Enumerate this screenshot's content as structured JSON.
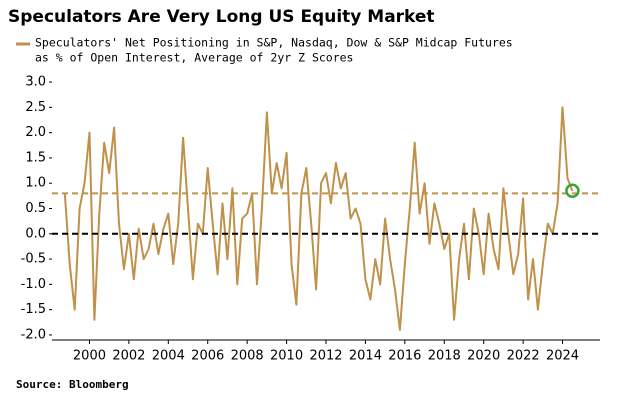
{
  "chart_data": {
    "type": "line",
    "title": "Speculators Are Very Long US Equity Market",
    "subtitle": [
      "Speculators' Net Positioning in S&P, Nasdaq, Dow & S&P Midcap Futures",
      "as % of Open Interest, Average of 2yr Z Scores"
    ],
    "source": "Source: Bloomberg",
    "xlim": [
      1998.1,
      2025.9
    ],
    "xticks": [
      2000,
      2002,
      2004,
      2006,
      2008,
      2010,
      2012,
      2014,
      2016,
      2018,
      2020,
      2022,
      2024
    ],
    "ylim": [
      -2.1,
      3.1
    ],
    "yticks": [
      {
        "value": 3,
        "label": "3.0"
      },
      2.5,
      {
        "value": 2,
        "label": "2.0"
      },
      1.5,
      {
        "value": 1,
        "label": "1.0"
      },
      0.5,
      {
        "value": 0,
        "label": "0.0"
      },
      -0.5,
      {
        "value": -1,
        "label": "-1.0"
      },
      -1.5,
      {
        "value": -2,
        "label": "-2.0"
      }
    ],
    "reference_lines": [
      {
        "value": 0.8,
        "color": "#c0914a"
      },
      {
        "value": 0,
        "color": "#000000"
      }
    ],
    "highlight": {
      "x": 2024.5,
      "value": 0.85,
      "color": "#3aa336"
    },
    "series": [
      {
        "name": "Speculators' Net Positioning in S&P, Nasdaq, Dow & S&P Midcap Futures as % of Open Interest, Average of 2yr Z Scores",
        "color": "#c0914a",
        "x": [
          1998.75,
          1999,
          1999.25,
          1999.5,
          1999.75,
          2000,
          2000.25,
          2000.5,
          2000.75,
          2001,
          2001.25,
          2001.5,
          2001.75,
          2002,
          2002.25,
          2002.5,
          2002.75,
          2003,
          2003.25,
          2003.5,
          2003.75,
          2004,
          2004.25,
          2004.5,
          2004.75,
          2005,
          2005.25,
          2005.5,
          2005.75,
          2006,
          2006.25,
          2006.5,
          2006.75,
          2007,
          2007.25,
          2007.5,
          2007.75,
          2008,
          2008.25,
          2008.5,
          2008.75,
          2009,
          2009.25,
          2009.5,
          2009.75,
          2010,
          2010.25,
          2010.5,
          2010.75,
          2011,
          2011.25,
          2011.5,
          2011.75,
          2012,
          2012.25,
          2012.5,
          2012.75,
          2013,
          2013.25,
          2013.5,
          2013.75,
          2014,
          2014.25,
          2014.5,
          2014.75,
          2015,
          2015.25,
          2015.5,
          2015.75,
          2016,
          2016.25,
          2016.5,
          2016.75,
          2017,
          2017.25,
          2017.5,
          2017.75,
          2018,
          2018.25,
          2018.5,
          2018.75,
          2019,
          2019.25,
          2019.5,
          2019.75,
          2020,
          2020.25,
          2020.5,
          2020.75,
          2021,
          2021.25,
          2021.5,
          2021.75,
          2022,
          2022.25,
          2022.5,
          2022.75,
          2023,
          2023.25,
          2023.5,
          2023.75,
          2024,
          2024.25,
          2024.5
        ],
        "values": [
          0.8,
          -0.6,
          -1.5,
          0.5,
          1.0,
          2.0,
          -1.7,
          0.4,
          1.8,
          1.2,
          2.1,
          0.2,
          -0.7,
          0.0,
          -0.9,
          0.1,
          -0.5,
          -0.3,
          0.2,
          -0.4,
          0.1,
          0.4,
          -0.6,
          0.2,
          1.9,
          0.5,
          -0.9,
          0.2,
          0.0,
          1.3,
          0.2,
          -0.8,
          0.6,
          -0.5,
          0.9,
          -1.0,
          0.3,
          0.4,
          0.8,
          -1.0,
          0.5,
          2.4,
          0.8,
          1.4,
          0.9,
          1.6,
          -0.6,
          -1.4,
          0.8,
          1.3,
          0.2,
          -1.1,
          1.0,
          1.2,
          0.6,
          1.4,
          0.9,
          1.2,
          0.3,
          0.5,
          0.2,
          -0.9,
          -1.3,
          -0.5,
          -1.0,
          0.3,
          -0.5,
          -1.1,
          -1.9,
          -0.6,
          0.5,
          1.8,
          0.4,
          1.0,
          -0.2,
          0.6,
          0.2,
          -0.3,
          0.0,
          -1.7,
          -0.5,
          0.2,
          -0.9,
          0.5,
          0.0,
          -0.8,
          0.4,
          -0.3,
          -0.7,
          0.9,
          0.0,
          -0.8,
          -0.4,
          0.7,
          -1.3,
          -0.5,
          -1.5,
          -0.6,
          0.2,
          0.0,
          0.6,
          2.5,
          1.1,
          0.85
        ]
      }
    ]
  }
}
